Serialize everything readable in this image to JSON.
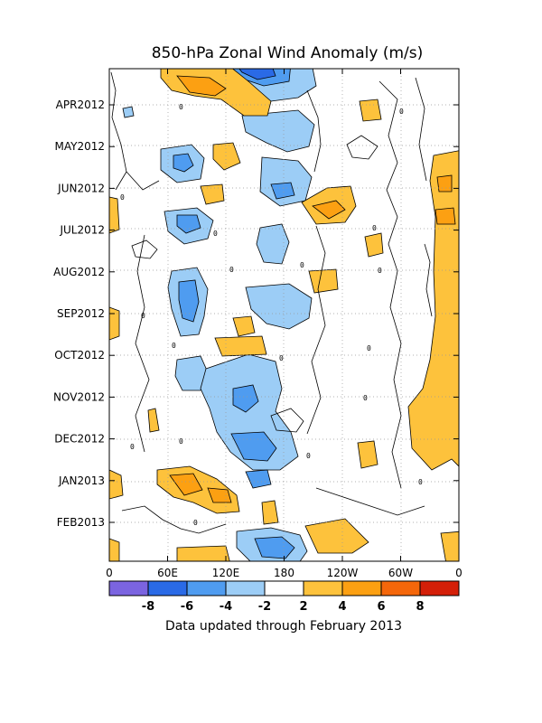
{
  "chart_data": {
    "type": "heatmap",
    "title": "850-hPa Zonal Wind Anomaly (m/s)",
    "xlabel": "",
    "ylabel": "",
    "x_tick_labels": [
      "0",
      "60E",
      "120E",
      "180",
      "120W",
      "60W",
      "0"
    ],
    "y_tick_labels": [
      "APR2012",
      "MAY2012",
      "JUN2012",
      "JUL2012",
      "AUG2012",
      "SEP2012",
      "OCT2012",
      "NOV2012",
      "DEC2012",
      "JAN2013",
      "FEB2013"
    ],
    "grid": true,
    "contour_interval": 2,
    "colorbar": {
      "labels": [
        "-8",
        "-6",
        "-4",
        "-2",
        "2",
        "4",
        "6",
        "8"
      ],
      "colors": [
        "#7b64e0",
        "#2a6ae6",
        "#4f9cf0",
        "#9ccdf6",
        "#ffffff",
        "#fdc23c",
        "#fca012",
        "#f5670a",
        "#d41f08"
      ]
    },
    "anomaly_regions": [
      {
        "label": "positive",
        "month": "late MAR2012",
        "lon": "60E-90E",
        "max": 6
      },
      {
        "label": "negative",
        "month": "late MAR2012",
        "lon": "120E-150E",
        "min": -8
      },
      {
        "label": "negative",
        "month": "MAY2012",
        "lon": "60E",
        "min": -4
      },
      {
        "label": "positive",
        "month": "MAY2012",
        "lon": "100E",
        "max": 4
      },
      {
        "label": "positive",
        "month": "JUN2012",
        "lon": "160W",
        "max": 8
      },
      {
        "label": "negative",
        "month": "JUN2012",
        "lon": "60E-90E",
        "min": -4
      },
      {
        "label": "negative",
        "month": "AUG-SEP2012",
        "lon": "80E",
        "min": -4
      },
      {
        "label": "negative",
        "month": "NOV-DEC2012",
        "lon": "120E-150E",
        "min": -4
      },
      {
        "label": "positive",
        "month": "JAN2013",
        "lon": "60E-100E",
        "max": 6
      },
      {
        "label": "negative",
        "month": "late FEB2013",
        "lon": "150E-170E",
        "min": -6
      },
      {
        "label": "positive",
        "month": "MAY2012-FEB2013",
        "lon": "60W-0",
        "max": 6
      }
    ]
  },
  "footer": {
    "note": "Data updated through February 2013"
  }
}
